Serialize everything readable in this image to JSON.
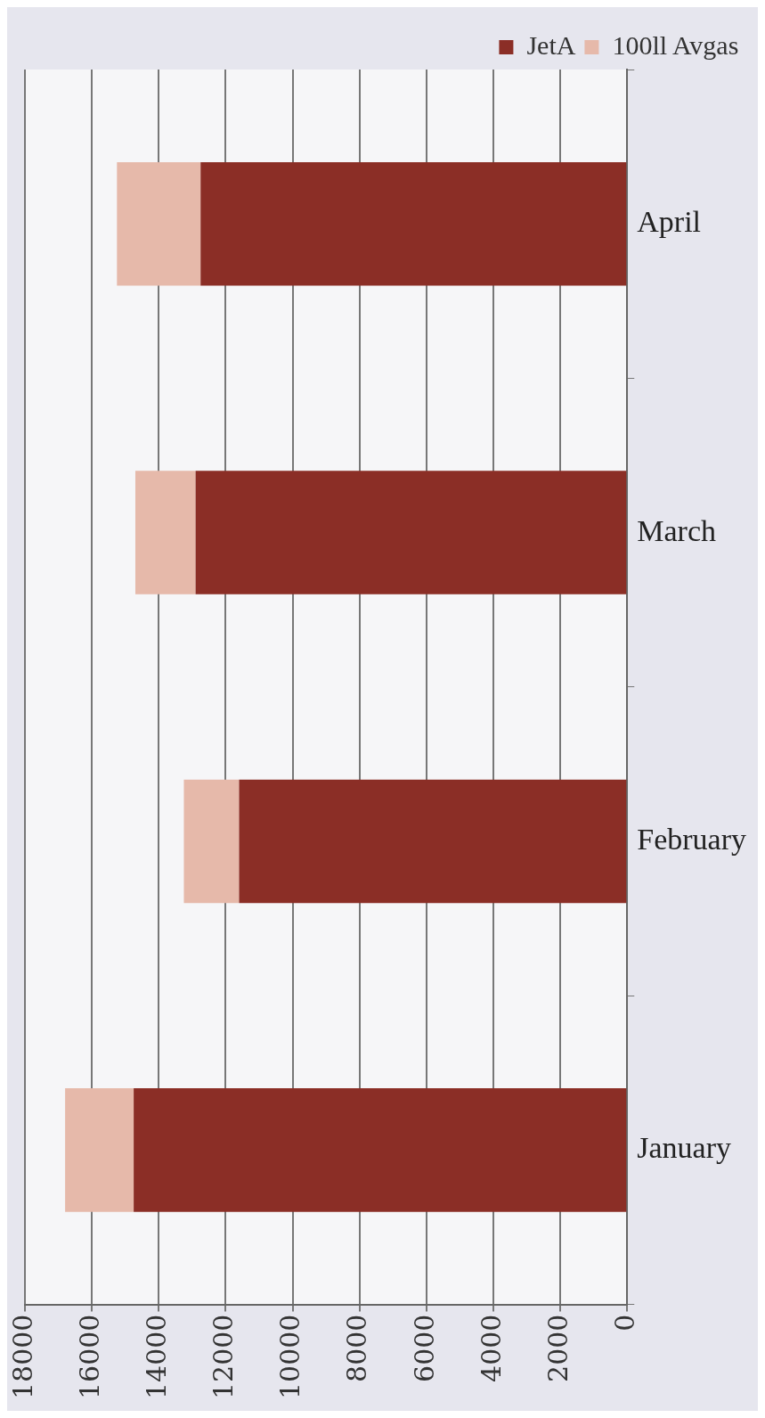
{
  "chart_data": {
    "type": "bar",
    "stacked": true,
    "orientation": "horizontal",
    "categories": [
      "April",
      "March",
      "February",
      "January"
    ],
    "series": [
      {
        "name": "JetA",
        "color": "#8b2e26",
        "values": [
          12750,
          12900,
          11600,
          14750
        ]
      },
      {
        "name": "100ll Avgas",
        "color": "#e6b9aa",
        "values": [
          2500,
          1800,
          1650,
          2050
        ]
      }
    ],
    "xlim": [
      18000,
      0
    ],
    "xticks": [
      0,
      2000,
      4000,
      6000,
      8000,
      10000,
      12000,
      14000,
      16000,
      18000
    ],
    "grid": "x",
    "legend": "top right"
  }
}
